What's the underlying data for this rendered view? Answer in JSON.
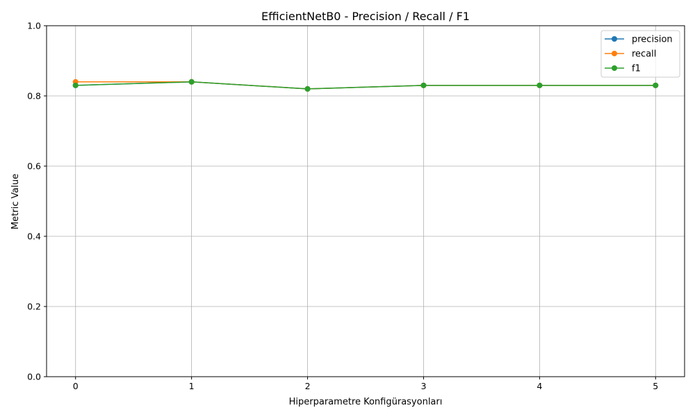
{
  "chart_data": {
    "type": "line",
    "title": "EfficientNetB0 - Precision / Recall / F1",
    "xlabel": "Hiperparametre Konfigürasyonları",
    "ylabel": "Metric Value",
    "x": [
      0,
      1,
      2,
      3,
      4,
      5
    ],
    "xlim": [
      -0.25,
      5.25
    ],
    "ylim": [
      0.0,
      1.0
    ],
    "xticks": [
      "0",
      "1",
      "2",
      "3",
      "4",
      "5"
    ],
    "yticks": [
      "0.0",
      "0.2",
      "0.4",
      "0.6",
      "0.8",
      "1.0"
    ],
    "grid": true,
    "legend_position": "top-right",
    "series": [
      {
        "name": "precision",
        "color": "#1f77b4",
        "values": [
          0.83,
          0.84,
          0.82,
          0.83,
          0.83,
          0.83
        ]
      },
      {
        "name": "recall",
        "color": "#ff7f0e",
        "values": [
          0.84,
          0.84,
          0.82,
          0.83,
          0.83,
          0.83
        ]
      },
      {
        "name": "f1",
        "color": "#2ca02c",
        "values": [
          0.83,
          0.84,
          0.82,
          0.83,
          0.83,
          0.83
        ]
      }
    ]
  }
}
